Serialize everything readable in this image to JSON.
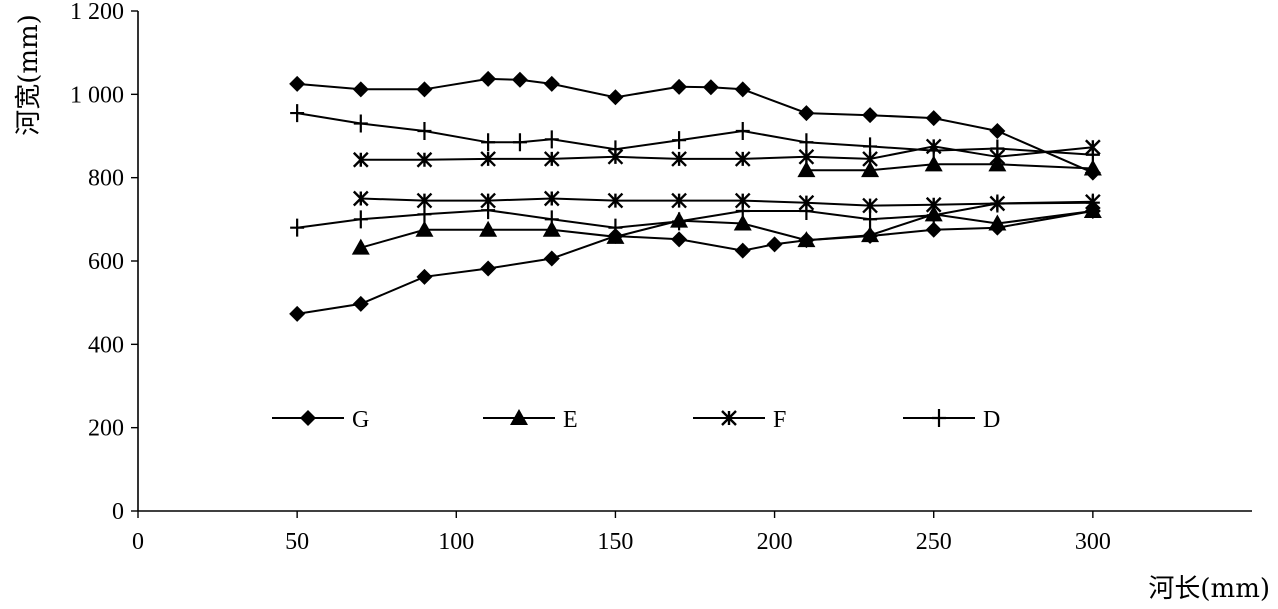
{
  "chart_data": {
    "type": "line",
    "xlabel": "河长(mm)",
    "ylabel": "河宽(mm)",
    "xlim": [
      0,
      350
    ],
    "ylim": [
      0,
      1200
    ],
    "x_ticks": [
      "0",
      "50",
      "100",
      "150",
      "200",
      "250",
      "300"
    ],
    "y_ticks": [
      "0",
      "200",
      "400",
      "600",
      "800",
      "1 000",
      "1 200"
    ],
    "grid": false,
    "legend_position": "inside-lower, single row",
    "series": [
      {
        "name": "G",
        "marker": "diamond",
        "lines": [
          {
            "x": [
              50,
              70,
              90,
              110,
              120,
              130,
              150,
              170,
              180,
              190,
              210,
              230,
              250,
              270,
              300
            ],
            "y": [
              1025,
              1012,
              1012,
              1037,
              1035,
              1025,
              993,
              1018,
              1017,
              1012,
              955,
              950,
              943,
              912,
              812
            ]
          },
          {
            "x": [
              50,
              70,
              90,
              110,
              130,
              150,
              170,
              190,
              200,
              210,
              230,
              250,
              270,
              300
            ],
            "y": [
              473,
              497,
              562,
              582,
              606,
              660,
              652,
              625,
              640,
              650,
              660,
              675,
              680,
              720
            ]
          }
        ]
      },
      {
        "name": "E",
        "marker": "triangle",
        "lines": [
          {
            "x": [
              70,
              90,
              110,
              130,
              150,
              170,
              190,
              210,
              230,
              250,
              270,
              300
            ],
            "y": [
              632,
              675,
              675,
              675,
              658,
              697,
              690,
              650,
              662,
              712,
              690,
              720
            ]
          },
          {
            "x": [
              210,
              230,
              250,
              270,
              300
            ],
            "y": [
              818,
              818,
              832,
              832,
              822
            ]
          }
        ]
      },
      {
        "name": "F",
        "marker": "asterisk",
        "lines": [
          {
            "x": [
              70,
              90,
              110,
              130,
              150,
              170,
              190,
              210,
              230,
              250,
              270,
              300
            ],
            "y": [
              843,
              843,
              845,
              845,
              850,
              845,
              845,
              850,
              845,
              875,
              850,
              873
            ]
          },
          {
            "x": [
              70,
              90,
              110,
              130,
              150,
              170,
              190,
              210,
              230,
              250,
              270,
              300
            ],
            "y": [
              750,
              745,
              745,
              750,
              745,
              745,
              745,
              740,
              733,
              735,
              738,
              742
            ]
          }
        ]
      },
      {
        "name": "D",
        "marker": "plus",
        "lines": [
          {
            "x": [
              50,
              70,
              90,
              110,
              120,
              130,
              150,
              170,
              190,
              210,
              230,
              250,
              270,
              300
            ],
            "y": [
              955,
              930,
              912,
              885,
              885,
              892,
              868,
              890,
              912,
              885,
              875,
              865,
              870,
              855
            ]
          },
          {
            "x": [
              50,
              70,
              90,
              110,
              130,
              150,
              170,
              190,
              210,
              230,
              250,
              270,
              300
            ],
            "y": [
              680,
              700,
              712,
              722,
              700,
              680,
              695,
              720,
              720,
              700,
              710,
              738,
              740
            ]
          }
        ]
      }
    ]
  }
}
